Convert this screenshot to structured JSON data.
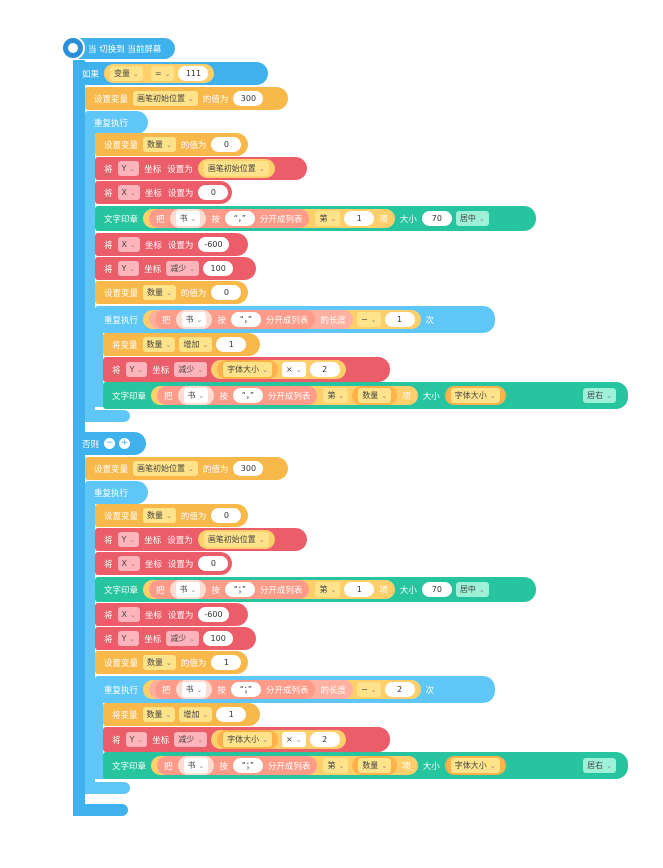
{
  "hat": {
    "label": "当 切换到 当前屏幕"
  },
  "if_block": {
    "label_if": "如果",
    "var_dropdown": "变量",
    "op_dropdown": "=",
    "value": "111",
    "label_else": "否则"
  },
  "blocks": {
    "set_var": "设置变量",
    "value_is": "的值为",
    "repeat": "重复执行",
    "move": "将",
    "coord": "坐标",
    "set_to": "设置为",
    "print": "文字印章",
    "take": "把",
    "by": "按",
    "split": "分开成列表",
    "nth": "第",
    "item": "项",
    "size": "大小",
    "length": "的长度",
    "times": "次",
    "change_var": "将变量",
    "var_count": "数量",
    "var_pen_start": "画笔初始位置",
    "var_font_size": "字体大小",
    "book": "书",
    "decrease": "减少",
    "increase": "增加",
    "center": "居中",
    "right": "居右",
    "minus": "−",
    "times_op": "×",
    "nth_dd": "第"
  },
  "axes": {
    "x": "X",
    "y": "Y"
  },
  "branch1": {
    "pen_start_value": "300",
    "count_init": "0",
    "x_init": "0",
    "delim": "“，”",
    "item_index": "1",
    "font_size": "70",
    "x_set": "-600",
    "y_decrease": "100",
    "count_reset": "0",
    "length_minus": "1",
    "count_increase": "1",
    "mult": "2"
  },
  "branch2": {
    "pen_start_value": "300",
    "count_init": "0",
    "x_init": "0",
    "delim": "“；”",
    "item_index": "1",
    "font_size": "70",
    "x_set": "-600",
    "y_decrease": "100",
    "count_reset": "1",
    "length_minus": "2",
    "count_increase": "1",
    "mult": "2"
  },
  "else_buttons": {
    "remove": "−",
    "add": "+"
  }
}
